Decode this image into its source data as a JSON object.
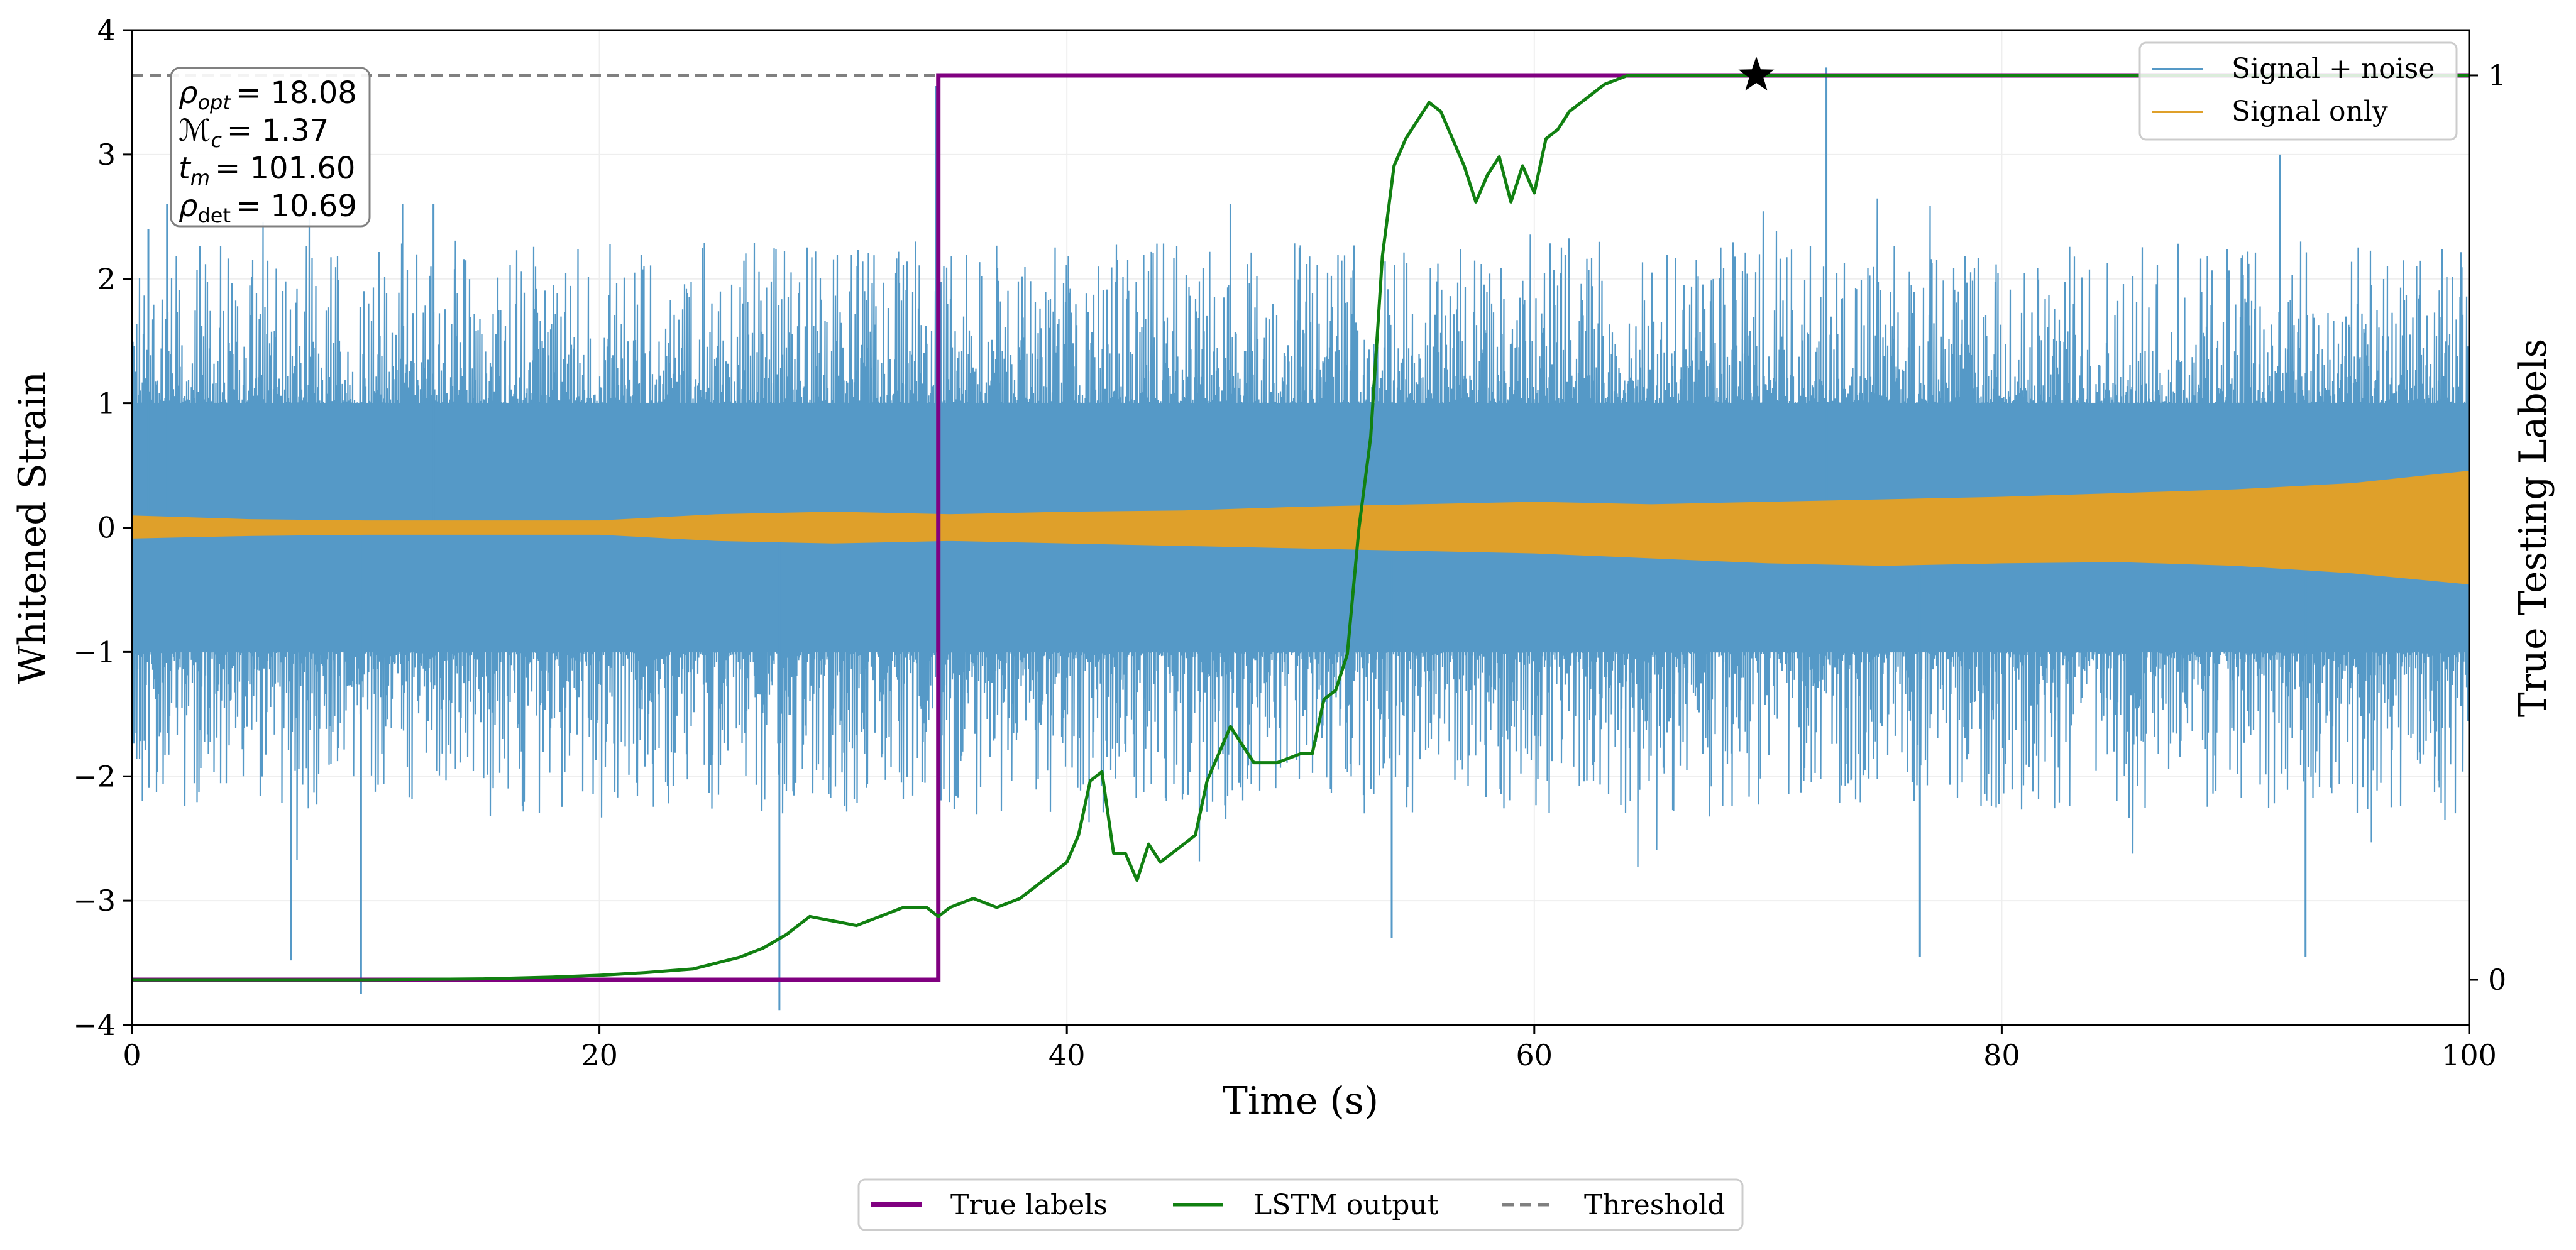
{
  "chart_data": {
    "type": "line",
    "xlabel": "Time (s)",
    "ylabel": "Whitened Strain",
    "ylabel_right": "True Testing Labels",
    "xlim": [
      0,
      100
    ],
    "ylim": [
      -4,
      4
    ],
    "ylim_right": [
      -0.05,
      1.05
    ],
    "xticks": [
      0,
      20,
      40,
      60,
      80,
      100
    ],
    "xtick_labels": [
      "0",
      "20",
      "40",
      "60",
      "80",
      "100"
    ],
    "yticks": [
      -4,
      -3,
      -2,
      -1,
      0,
      1,
      2,
      3,
      4
    ],
    "ytick_labels": [
      "−4",
      "−3",
      "−2",
      "−1",
      "0",
      "1",
      "2",
      "3",
      "4"
    ],
    "yticks_right": [
      0,
      1
    ],
    "ytick_right_labels": [
      "0",
      "1"
    ],
    "grid": true,
    "colors": {
      "signal_noise": "#5599c7",
      "signal_only": "#dfa02a",
      "true_labels": "#800080",
      "lstm": "#118011",
      "threshold": "#808080"
    },
    "annotations": {
      "lines": [
        "ρopt = 18.08",
        "ℳc = 1.37",
        "tm = 101.60",
        "ρdet = 10.69"
      ],
      "rho_opt_label": "ρ",
      "rho_opt_sub": "opt",
      "rho_opt_value": "= 18.08",
      "mc_label": "ℳ",
      "mc_sub": "c",
      "mc_value": "= 1.37",
      "tm_label": "t",
      "tm_sub": "m",
      "tm_value": "= 101.60",
      "rho_det_label": "ρ",
      "rho_det_sub": "det",
      "rho_det_value": "= 10.69"
    },
    "series": [
      {
        "name": "Signal + noise",
        "kind": "noise_band",
        "axis": "left",
        "core_upper": 1.0,
        "core_lower": -1.0,
        "spike_upper": 2.3,
        "spike_lower": -2.3,
        "spikes": [
          [
            0.7,
            2.4
          ],
          [
            1.5,
            2.6
          ],
          [
            6.8,
            -3.48
          ],
          [
            9.8,
            -3.75
          ],
          [
            12.9,
            2.6
          ],
          [
            27.7,
            -3.88
          ],
          [
            34.4,
            3.55
          ],
          [
            47.0,
            2.6
          ],
          [
            53.9,
            -3.3
          ],
          [
            72.5,
            3.7
          ],
          [
            76.5,
            -3.45
          ],
          [
            91.9,
            3.0
          ],
          [
            93.0,
            -3.45
          ]
        ]
      },
      {
        "name": "Signal only",
        "kind": "envelope",
        "axis": "left",
        "x": [
          0,
          5,
          10,
          15,
          20,
          25,
          30,
          35,
          40,
          45,
          50,
          55,
          60,
          65,
          70,
          75,
          80,
          85,
          90,
          95,
          100
        ],
        "upper": [
          0.09,
          0.06,
          0.05,
          0.05,
          0.05,
          0.1,
          0.12,
          0.1,
          0.12,
          0.13,
          0.16,
          0.18,
          0.2,
          0.18,
          0.2,
          0.22,
          0.24,
          0.27,
          0.3,
          0.35,
          0.45
        ],
        "lower": [
          -0.08,
          -0.06,
          -0.05,
          -0.05,
          -0.05,
          -0.1,
          -0.12,
          -0.1,
          -0.12,
          -0.14,
          -0.16,
          -0.18,
          -0.2,
          -0.24,
          -0.28,
          -0.3,
          -0.28,
          -0.27,
          -0.3,
          -0.36,
          -0.45
        ]
      },
      {
        "name": "True labels",
        "kind": "step",
        "axis": "right",
        "x": [
          0,
          34.5,
          34.5,
          100
        ],
        "y": [
          0,
          0,
          1,
          1
        ]
      },
      {
        "name": "LSTM output",
        "kind": "line",
        "axis": "right",
        "x": [
          0,
          10,
          15,
          18,
          20,
          22,
          24,
          26,
          27,
          28,
          29,
          30,
          31,
          32,
          33,
          34,
          34.5,
          35,
          36,
          37,
          38,
          39,
          40,
          40.5,
          41,
          41.5,
          42,
          42.5,
          43,
          43.5,
          44,
          45,
          45.5,
          46,
          47,
          48,
          49,
          50,
          50.5,
          51,
          51.5,
          52,
          52.5,
          53,
          53.5,
          54,
          54.5,
          55,
          55.5,
          56,
          56.5,
          57,
          57.5,
          58,
          58.5,
          59,
          59.5,
          60,
          60.5,
          61,
          61.5,
          62,
          62.5,
          63,
          63.5,
          64,
          65,
          66,
          70,
          100
        ],
        "y": [
          0.0,
          0.0,
          0.001,
          0.003,
          0.005,
          0.008,
          0.012,
          0.025,
          0.035,
          0.05,
          0.07,
          0.065,
          0.06,
          0.07,
          0.08,
          0.08,
          0.07,
          0.08,
          0.09,
          0.08,
          0.09,
          0.11,
          0.13,
          0.16,
          0.22,
          0.23,
          0.14,
          0.14,
          0.11,
          0.15,
          0.13,
          0.15,
          0.16,
          0.22,
          0.28,
          0.24,
          0.24,
          0.25,
          0.25,
          0.31,
          0.32,
          0.36,
          0.5,
          0.6,
          0.8,
          0.9,
          0.93,
          0.95,
          0.97,
          0.96,
          0.93,
          0.9,
          0.86,
          0.89,
          0.91,
          0.86,
          0.9,
          0.87,
          0.93,
          0.94,
          0.96,
          0.97,
          0.98,
          0.99,
          0.995,
          1.0,
          1.0,
          1.0,
          1.0,
          1.0
        ]
      },
      {
        "name": "Threshold",
        "kind": "hline",
        "axis": "right",
        "y": 1.0
      },
      {
        "name": "Detection",
        "kind": "marker",
        "axis": "right",
        "x": 69.5,
        "y": 1.0
      }
    ],
    "legend_top": [
      "Signal + noise",
      "Signal only"
    ],
    "legend_bottom": [
      "True labels",
      "LSTM output",
      "Threshold"
    ]
  }
}
